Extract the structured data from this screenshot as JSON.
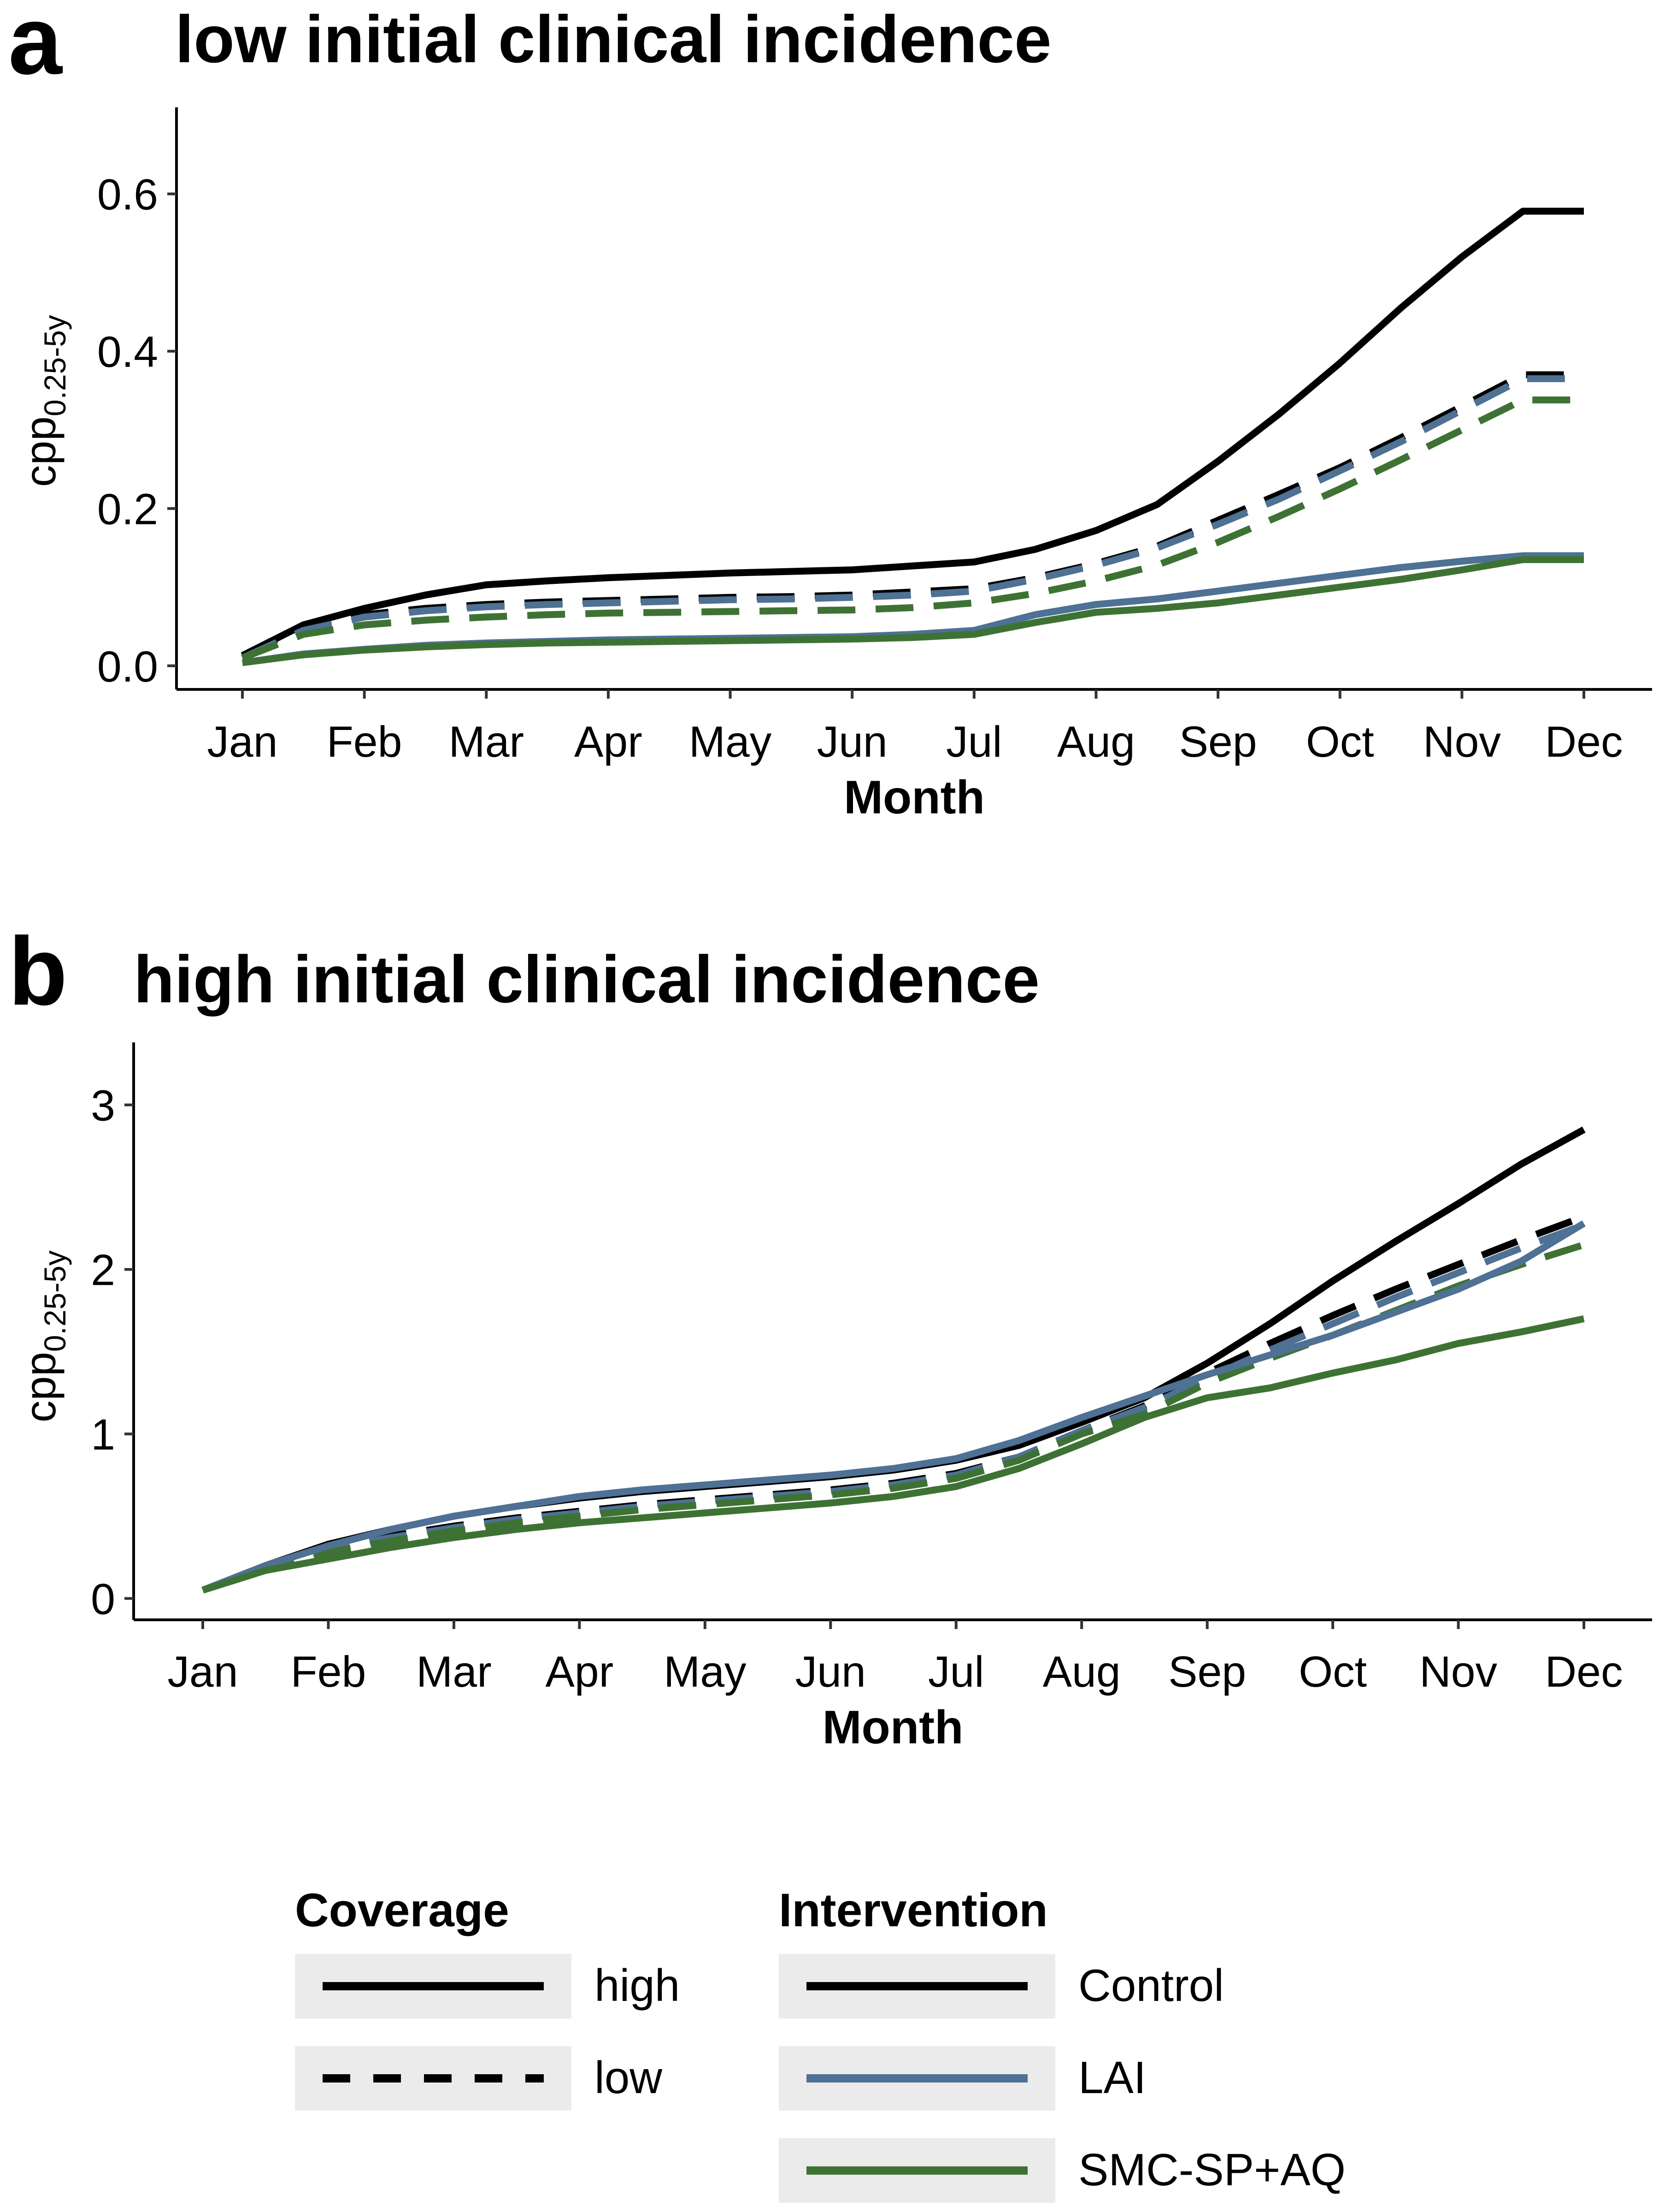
{
  "chart_data": [
    {
      "panel": "a",
      "title": "low initial clinical incidence",
      "type": "line",
      "xlabel": "Month",
      "ylabel_main": "cpp",
      "ylabel_sub": "0.25-5y",
      "categories": [
        "Jan",
        "Feb",
        "Mar",
        "Apr",
        "May",
        "Jun",
        "Jul",
        "Aug",
        "Sep",
        "Oct",
        "Nov",
        "Dec"
      ],
      "ylim": [
        -0.03,
        0.71
      ],
      "yticks": [
        0.0,
        0.2,
        0.4,
        0.6
      ],
      "ytick_labels": [
        "0.0",
        "0.2",
        "0.4",
        "0.6"
      ],
      "x": [
        0,
        0.5,
        1,
        1.5,
        2,
        2.5,
        3,
        3.5,
        4,
        4.5,
        5,
        5.5,
        6,
        6.5,
        7,
        7.5,
        8,
        8.5,
        9,
        9.5,
        10,
        10.5,
        11
      ],
      "series": [
        {
          "intervention": "Control",
          "coverage": "high",
          "values": [
            0.013,
            0.052,
            0.073,
            0.09,
            0.103,
            0.108,
            0.112,
            0.115,
            0.118,
            0.12,
            0.122,
            0.127,
            0.132,
            0.148,
            0.172,
            0.205,
            0.26,
            0.32,
            0.385,
            0.455,
            0.52,
            0.578,
            0.578
          ]
        },
        {
          "intervention": "Control",
          "coverage": "low",
          "values": [
            0.013,
            0.05,
            0.065,
            0.073,
            0.078,
            0.081,
            0.083,
            0.085,
            0.087,
            0.088,
            0.09,
            0.094,
            0.098,
            0.112,
            0.13,
            0.152,
            0.185,
            0.218,
            0.252,
            0.29,
            0.33,
            0.37,
            0.37
          ]
        },
        {
          "intervention": "LAI",
          "coverage": "low",
          "values": [
            0.01,
            0.045,
            0.062,
            0.07,
            0.075,
            0.078,
            0.08,
            0.082,
            0.084,
            0.085,
            0.087,
            0.09,
            0.095,
            0.11,
            0.128,
            0.15,
            0.18,
            0.212,
            0.248,
            0.285,
            0.325,
            0.365,
            0.365
          ]
        },
        {
          "intervention": "SMC-SP+AQ",
          "coverage": "low",
          "values": [
            0.01,
            0.04,
            0.052,
            0.058,
            0.062,
            0.065,
            0.067,
            0.068,
            0.069,
            0.07,
            0.071,
            0.074,
            0.08,
            0.092,
            0.108,
            0.128,
            0.157,
            0.19,
            0.225,
            0.262,
            0.3,
            0.338,
            0.338
          ]
        },
        {
          "intervention": "LAI",
          "coverage": "high",
          "values": [
            0.004,
            0.015,
            0.021,
            0.026,
            0.029,
            0.031,
            0.033,
            0.034,
            0.035,
            0.036,
            0.037,
            0.04,
            0.045,
            0.065,
            0.078,
            0.085,
            0.095,
            0.105,
            0.115,
            0.125,
            0.133,
            0.14,
            0.14
          ]
        },
        {
          "intervention": "SMC-SP+AQ",
          "coverage": "high",
          "values": [
            0.004,
            0.014,
            0.02,
            0.024,
            0.027,
            0.029,
            0.03,
            0.031,
            0.032,
            0.033,
            0.034,
            0.036,
            0.04,
            0.055,
            0.068,
            0.073,
            0.08,
            0.09,
            0.1,
            0.11,
            0.122,
            0.135,
            0.135
          ]
        }
      ]
    },
    {
      "panel": "b",
      "title": "high initial clinical incidence",
      "type": "line",
      "xlabel": "Month",
      "ylabel_main": "cpp",
      "ylabel_sub": "0.25-5y",
      "categories": [
        "Jan",
        "Feb",
        "Mar",
        "Apr",
        "May",
        "Jun",
        "Jul",
        "Aug",
        "Sep",
        "Oct",
        "Nov",
        "Dec"
      ],
      "ylim": [
        -0.13,
        3.38
      ],
      "yticks": [
        0,
        1,
        2,
        3
      ],
      "ytick_labels": [
        "0",
        "1",
        "2",
        "3"
      ],
      "x": [
        0,
        0.5,
        1,
        1.5,
        2,
        2.5,
        3,
        3.5,
        4,
        4.5,
        5,
        5.5,
        6,
        6.5,
        7,
        7.5,
        8,
        8.5,
        9,
        9.5,
        10,
        10.5,
        11
      ],
      "series": [
        {
          "intervention": "Control",
          "coverage": "high",
          "values": [
            0.05,
            0.2,
            0.33,
            0.42,
            0.5,
            0.56,
            0.61,
            0.65,
            0.68,
            0.71,
            0.74,
            0.78,
            0.84,
            0.93,
            1.07,
            1.22,
            1.43,
            1.67,
            1.93,
            2.17,
            2.4,
            2.64,
            2.85
          ]
        },
        {
          "intervention": "Control",
          "coverage": "low",
          "values": [
            0.05,
            0.19,
            0.3,
            0.38,
            0.44,
            0.49,
            0.53,
            0.57,
            0.6,
            0.63,
            0.66,
            0.7,
            0.76,
            0.86,
            1.02,
            1.17,
            1.37,
            1.55,
            1.72,
            1.88,
            2.03,
            2.18,
            2.32
          ]
        },
        {
          "intervention": "LAI",
          "coverage": "low",
          "values": [
            0.05,
            0.19,
            0.3,
            0.37,
            0.43,
            0.48,
            0.52,
            0.56,
            0.59,
            0.62,
            0.65,
            0.69,
            0.75,
            0.86,
            1.02,
            1.16,
            1.34,
            1.51,
            1.67,
            1.83,
            1.98,
            2.13,
            2.27
          ]
        },
        {
          "intervention": "SMC-SP+AQ",
          "coverage": "low",
          "values": [
            0.05,
            0.18,
            0.28,
            0.35,
            0.41,
            0.46,
            0.5,
            0.54,
            0.57,
            0.6,
            0.63,
            0.67,
            0.73,
            0.84,
            1.0,
            1.12,
            1.31,
            1.46,
            1.6,
            1.75,
            1.9,
            2.03,
            2.15
          ]
        },
        {
          "intervention": "LAI",
          "coverage": "high",
          "values": [
            0.05,
            0.2,
            0.32,
            0.42,
            0.5,
            0.56,
            0.62,
            0.66,
            0.69,
            0.72,
            0.75,
            0.79,
            0.85,
            0.96,
            1.1,
            1.23,
            1.36,
            1.48,
            1.6,
            1.74,
            1.88,
            2.05,
            2.28
          ]
        },
        {
          "intervention": "SMC-SP+AQ",
          "coverage": "high",
          "values": [
            0.05,
            0.17,
            0.24,
            0.31,
            0.37,
            0.42,
            0.46,
            0.49,
            0.52,
            0.55,
            0.58,
            0.62,
            0.68,
            0.79,
            0.94,
            1.1,
            1.22,
            1.28,
            1.37,
            1.45,
            1.55,
            1.62,
            1.7
          ]
        }
      ]
    }
  ],
  "legend": {
    "coverage_title": "Coverage",
    "coverage_items": [
      {
        "label": "high",
        "dash": "solid"
      },
      {
        "label": "low",
        "dash": "dashed"
      }
    ],
    "intervention_title": "Intervention",
    "intervention_items": [
      {
        "label": "Control",
        "color": "#000000"
      },
      {
        "label": "LAI",
        "color": "#4e7194"
      },
      {
        "label": "SMC-SP+AQ",
        "color": "#3e7234"
      }
    ]
  },
  "colors": {
    "Control": "#000000",
    "LAI": "#4e7194",
    "SMC-SP+AQ": "#3e7234",
    "legend_key_bg": "#ebebeb"
  }
}
